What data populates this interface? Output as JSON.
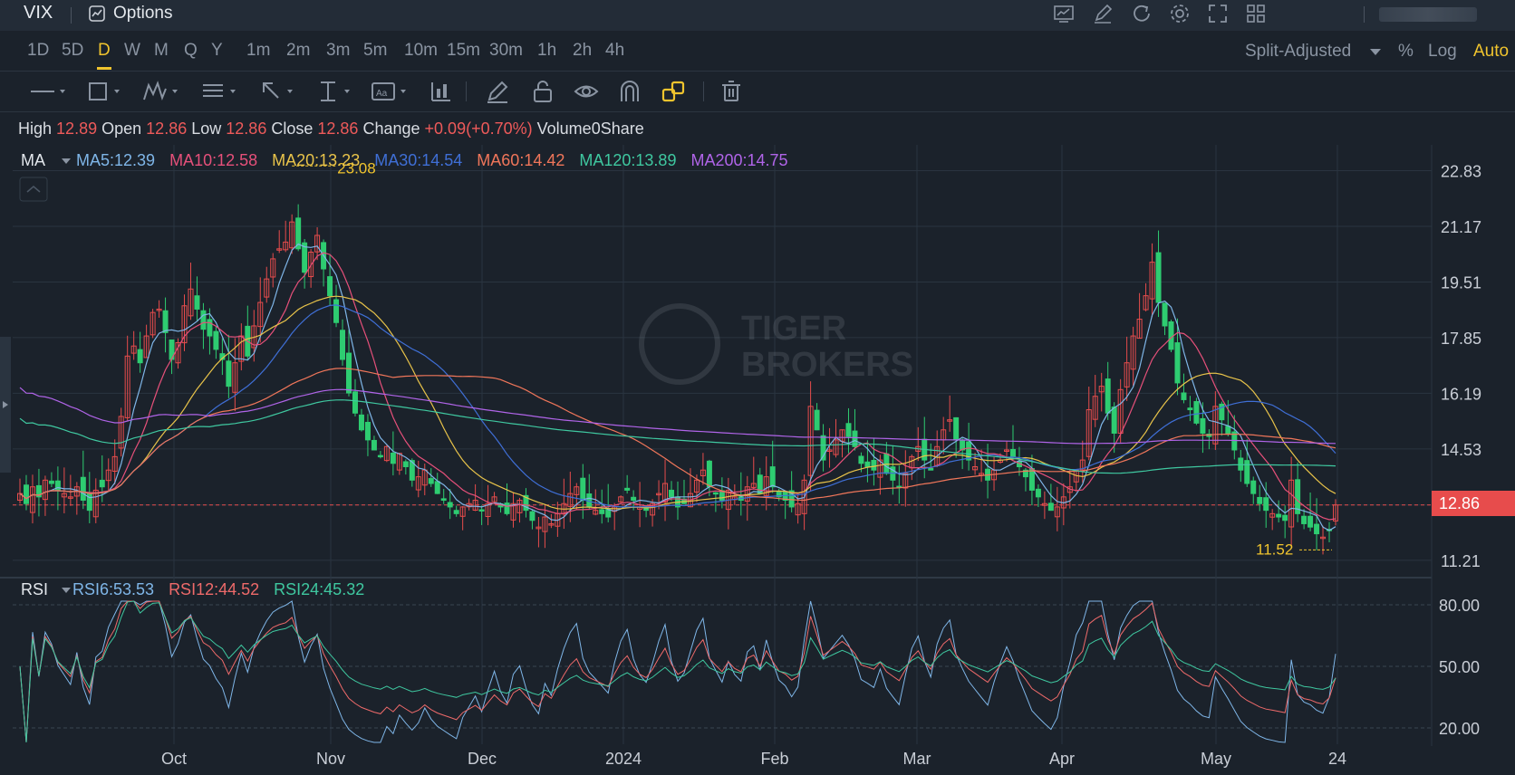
{
  "header": {
    "symbol": "VIX",
    "options_label": "Options",
    "icons": [
      "chart-icon",
      "edit-icon",
      "refresh-icon",
      "settings-icon",
      "fullscreen-icon",
      "layout-icon"
    ]
  },
  "timeframes": {
    "items": [
      "1D",
      "5D",
      "D",
      "W",
      "M",
      "Q",
      "Y",
      "1m",
      "2m",
      "3m",
      "5m",
      "10m",
      "15m",
      "30m",
      "1h",
      "2h",
      "4h"
    ],
    "active": "D",
    "adjust_label": "Split-Adjusted",
    "pct_label": "%",
    "log_label": "Log",
    "auto_label": "Auto"
  },
  "drawing_tools": [
    "line-tool-icon",
    "rectangle-tool-icon",
    "pattern-tool-icon",
    "fib-tool-icon",
    "arrow-tool-icon",
    "measure-tool-icon",
    "text-tool-icon",
    "indicator-tool-icon",
    "pencil-icon",
    "lock-icon",
    "eye-icon",
    "magnet-icon",
    "link-icon",
    "trash-icon"
  ],
  "quote": {
    "high_label": "High",
    "high": "12.89",
    "open_label": "Open",
    "open": "12.86",
    "low_label": "Low",
    "low": "12.86",
    "close_label": "Close",
    "close": "12.86",
    "change_label": "Change",
    "change": "+0.09(+0.70%)",
    "volume_label": "Volume",
    "volume": "0Share"
  },
  "ma_legend": {
    "label": "MA",
    "items": [
      {
        "text": "MA5:12.39",
        "color": "#7fb6e8"
      },
      {
        "text": "MA10:12.58",
        "color": "#e6507a"
      },
      {
        "text": "MA20:13.23",
        "color": "#e8c34a"
      },
      {
        "text": "MA30:14.54",
        "color": "#3f6fd6"
      },
      {
        "text": "MA60:14.42",
        "color": "#f0765a"
      },
      {
        "text": "MA120:13.89",
        "color": "#3fc8a0"
      },
      {
        "text": "MA200:14.75",
        "color": "#b064e8"
      }
    ]
  },
  "rsi_legend": {
    "label": "RSI",
    "items": [
      {
        "text": "RSI6:53.53",
        "color": "#7fb6e8"
      },
      {
        "text": "RSI12:44.52",
        "color": "#ee6a6a"
      },
      {
        "text": "RSI24:45.32",
        "color": "#3fc8a0"
      }
    ]
  },
  "colors": {
    "up": "#e74c4c",
    "down": "#2ecc71",
    "accent": "#f0c42e",
    "grid": "#2a3440",
    "price_line": "#e74c4c"
  },
  "chart_data": {
    "type": "candlestick",
    "y_axis_ticks": [
      "22.83",
      "21.17",
      "19.51",
      "17.85",
      "16.19",
      "14.53",
      "12.86",
      "11.21"
    ],
    "ylim": [
      10.8,
      23.6
    ],
    "x_axis_ticks": [
      "Oct",
      "Nov",
      "Dec",
      "2024",
      "Feb",
      "Mar",
      "Apr",
      "May",
      "24"
    ],
    "last_price": "12.86",
    "max_annotation": "23.08",
    "min_annotation": "11.52",
    "close_series": [
      13.2,
      12.9,
      13.4,
      13.1,
      13.6,
      13.5,
      13.3,
      13.2,
      13.1,
      13.4,
      13.0,
      12.7,
      13.3,
      13.4,
      13.9,
      14.3,
      15.5,
      17.3,
      17.6,
      17.1,
      17.9,
      18.6,
      18.7,
      18.0,
      17.2,
      17.7,
      18.8,
      19.3,
      18.7,
      18.1,
      17.9,
      17.5,
      17.2,
      16.4,
      17.1,
      17.9,
      17.3,
      18.2,
      18.9,
      19.6,
      20.2,
      20.5,
      20.7,
      21.3,
      20.5,
      19.8,
      20.4,
      20.9,
      19.9,
      19.1,
      18.3,
      17.2,
      16.2,
      15.6,
      15.1,
      14.8,
      14.5,
      14.3,
      14.6,
      14.1,
      14.4,
      14.0,
      13.6,
      13.7,
      13.9,
      13.5,
      13.2,
      13.0,
      12.8,
      12.6,
      12.8,
      12.9,
      13.0,
      12.7,
      12.9,
      13.1,
      12.8,
      12.6,
      12.9,
      13.0,
      12.7,
      12.4,
      12.2,
      12.5,
      12.3,
      12.6,
      12.9,
      13.2,
      13.4,
      13.0,
      12.8,
      12.7,
      12.6,
      12.5,
      12.8,
      13.1,
      13.3,
      13.0,
      12.8,
      12.7,
      12.9,
      13.2,
      13.5,
      13.1,
      12.8,
      12.9,
      13.2,
      13.6,
      13.9,
      13.4,
      13.2,
      13.0,
      13.3,
      13.1,
      13.0,
      13.4,
      13.5,
      13.2,
      13.7,
      13.4,
      13.1,
      13.0,
      12.8,
      12.9,
      13.6,
      15.8,
      15.1,
      14.2,
      14.5,
      14.8,
      15.1,
      14.9,
      14.6,
      14.1,
      14.0,
      13.9,
      14.2,
      13.8,
      13.6,
      13.4,
      13.8,
      14.3,
      14.6,
      14.2,
      13.9,
      14.6,
      15.1,
      15.4,
      14.8,
      14.5,
      14.2,
      14.0,
      13.8,
      13.6,
      13.9,
      14.2,
      14.5,
      14.3,
      14.0,
      13.7,
      13.3,
      13.1,
      12.9,
      12.7,
      12.8,
      13.1,
      13.4,
      13.9,
      14.2,
      15.7,
      16.1,
      16.4,
      15.6,
      15.0,
      16.3,
      17.1,
      17.9,
      18.4,
      19.1,
      20.1,
      18.9,
      18.2,
      17.5,
      16.5,
      16.0,
      15.7,
      15.3,
      15.0,
      14.9,
      15.8,
      15.4,
      15.0,
      14.5,
      13.9,
      13.5,
      13.2,
      12.9,
      12.7,
      12.6,
      12.5,
      12.4,
      13.6,
      12.6,
      12.3,
      12.2,
      12.0,
      11.9,
      12.1,
      12.86
    ]
  }
}
